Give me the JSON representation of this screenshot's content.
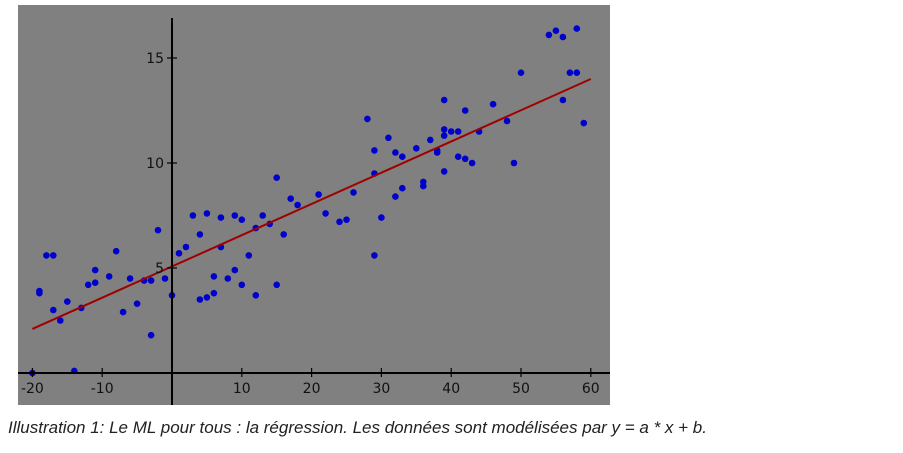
{
  "caption": "Illustration 1: Le ML pour tous : la régression. Les données sont modélisées par y = a * x + b.",
  "colors": {
    "plot_background": "#808080",
    "points": "#0000cc",
    "regression_line": "#a00000",
    "axis": "#000000"
  },
  "chart_data": {
    "type": "scatter",
    "title": "",
    "xlabel": "",
    "ylabel": "",
    "xlim": [
      -22,
      62
    ],
    "ylim": [
      -0.2,
      17
    ],
    "x_ticks": [
      -20,
      -10,
      10,
      20,
      30,
      40,
      50,
      60
    ],
    "y_ticks": [
      5,
      10,
      15
    ],
    "x_tick_labels": [
      "-20",
      "-10",
      "10",
      "20",
      "30",
      "40",
      "50",
      "60"
    ],
    "y_tick_labels": [
      "5",
      "10",
      "15"
    ],
    "grid": false,
    "points": [
      [
        -20,
        0.0
      ],
      [
        -19,
        3.8
      ],
      [
        -19,
        3.9
      ],
      [
        -18,
        5.6
      ],
      [
        -17,
        5.6
      ],
      [
        -17,
        3.0
      ],
      [
        -16,
        2.5
      ],
      [
        -15,
        3.4
      ],
      [
        -14,
        0.1
      ],
      [
        -13,
        3.1
      ],
      [
        -12,
        4.2
      ],
      [
        -11,
        4.9
      ],
      [
        -11,
        4.3
      ],
      [
        -9,
        4.6
      ],
      [
        -8,
        5.8
      ],
      [
        -7,
        2.9
      ],
      [
        -6,
        4.5
      ],
      [
        -5,
        3.3
      ],
      [
        -4,
        4.4
      ],
      [
        -3,
        1.8
      ],
      [
        -3,
        4.4
      ],
      [
        -2,
        6.8
      ],
      [
        -1,
        4.5
      ],
      [
        0,
        3.7
      ],
      [
        1,
        5.7
      ],
      [
        2,
        6.0
      ],
      [
        3,
        7.5
      ],
      [
        4,
        6.6
      ],
      [
        4,
        3.5
      ],
      [
        5,
        3.6
      ],
      [
        5,
        7.6
      ],
      [
        6,
        4.6
      ],
      [
        6,
        3.8
      ],
      [
        7,
        7.4
      ],
      [
        7,
        6.0
      ],
      [
        8,
        4.5
      ],
      [
        9,
        7.5
      ],
      [
        9,
        4.9
      ],
      [
        10,
        7.3
      ],
      [
        10,
        4.2
      ],
      [
        11,
        5.6
      ],
      [
        12,
        6.9
      ],
      [
        12,
        3.7
      ],
      [
        13,
        7.5
      ],
      [
        14,
        7.1
      ],
      [
        15,
        9.3
      ],
      [
        15,
        4.2
      ],
      [
        16,
        6.6
      ],
      [
        17,
        8.3
      ],
      [
        18,
        8.0
      ],
      [
        21,
        8.5
      ],
      [
        22,
        7.6
      ],
      [
        24,
        7.2
      ],
      [
        25,
        7.3
      ],
      [
        26,
        8.6
      ],
      [
        28,
        12.1
      ],
      [
        29,
        10.6
      ],
      [
        29,
        9.5
      ],
      [
        29,
        5.6
      ],
      [
        30,
        7.4
      ],
      [
        31,
        11.2
      ],
      [
        32,
        10.5
      ],
      [
        32,
        8.4
      ],
      [
        33,
        10.3
      ],
      [
        33,
        8.8
      ],
      [
        35,
        10.7
      ],
      [
        36,
        9.1
      ],
      [
        36,
        8.9
      ],
      [
        37,
        11.1
      ],
      [
        38,
        10.6
      ],
      [
        38,
        10.5
      ],
      [
        39,
        11.3
      ],
      [
        39,
        9.6
      ],
      [
        39,
        13.0
      ],
      [
        39,
        11.6
      ],
      [
        40,
        11.5
      ],
      [
        41,
        10.3
      ],
      [
        41,
        11.5
      ],
      [
        42,
        12.5
      ],
      [
        42,
        10.2
      ],
      [
        43,
        10.0
      ],
      [
        44,
        11.5
      ],
      [
        46,
        12.8
      ],
      [
        48,
        12.0
      ],
      [
        49,
        10.0
      ],
      [
        50,
        14.3
      ],
      [
        54,
        16.1
      ],
      [
        55,
        16.3
      ],
      [
        56,
        16.0
      ],
      [
        56,
        13.0
      ],
      [
        57,
        14.3
      ],
      [
        58,
        16.4
      ],
      [
        58,
        14.3
      ],
      [
        59,
        11.9
      ]
    ],
    "line": {
      "x": [
        -20,
        60
      ],
      "y": [
        2.1,
        14.0
      ]
    }
  }
}
